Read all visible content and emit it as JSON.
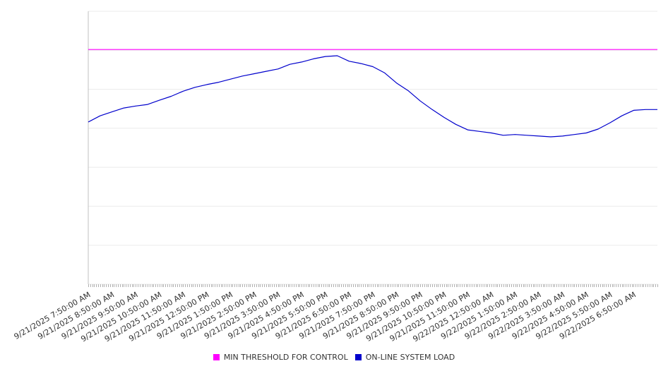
{
  "chart_data": {
    "type": "line",
    "title": "",
    "xlabel": "",
    "ylabel": "",
    "grid": true,
    "legend_position": "bottom",
    "x_tick_labels": [
      "9/21/2025 7:50:00 AM",
      "9/21/2025 8:50:00 AM",
      "9/21/2025 9:50:00 AM",
      "9/21/2025 10:50:00 AM",
      "9/21/2025 11:50:00 AM",
      "9/21/2025 12:50:00 PM",
      "9/21/2025 1:50:00 PM",
      "9/21/2025 2:50:00 PM",
      "9/21/2025 3:50:00 PM",
      "9/21/2025 4:50:00 PM",
      "9/21/2025 5:50:00 PM",
      "9/21/2025 6:50:00 PM",
      "9/21/2025 7:50:00 PM",
      "9/21/2025 8:50:00 PM",
      "9/21/2025 9:50:00 PM",
      "9/21/2025 10:50:00 PM",
      "9/21/2025 11:50:00 PM",
      "9/22/2025 12:50:00 AM",
      "9/22/2025 1:50:00 AM",
      "9/22/2025 2:50:00 AM",
      "9/22/2025 3:50:00 AM",
      "9/22/2025 4:50:00 AM",
      "9/22/2025 5:50:00 AM",
      "9/22/2025 6:50:00 AM"
    ],
    "ylim": [
      0,
      7
    ],
    "series": [
      {
        "name": "MIN THRESHOLD FOR CONTROL",
        "color": "#ff00ff",
        "x": [
          "9/21/2025 7:50:00 AM",
          "9/22/2025 7:50:00 AM"
        ],
        "values": [
          6.02,
          6.02
        ]
      },
      {
        "name": "ON-LINE SYSTEM LOAD",
        "color": "#0000cc",
        "x": [
          "9/21/2025 7:50:00 AM",
          "9/21/2025 8:20:00 AM",
          "9/21/2025 8:50:00 AM",
          "9/21/2025 9:20:00 AM",
          "9/21/2025 9:50:00 AM",
          "9/21/2025 10:20:00 AM",
          "9/21/2025 10:50:00 AM",
          "9/21/2025 11:20:00 AM",
          "9/21/2025 11:50:00 AM",
          "9/21/2025 12:20:00 PM",
          "9/21/2025 12:50:00 PM",
          "9/21/2025 1:20:00 PM",
          "9/21/2025 1:50:00 PM",
          "9/21/2025 2:20:00 PM",
          "9/21/2025 2:50:00 PM",
          "9/21/2025 3:20:00 PM",
          "9/21/2025 3:50:00 PM",
          "9/21/2025 4:20:00 PM",
          "9/21/2025 4:50:00 PM",
          "9/21/2025 5:20:00 PM",
          "9/21/2025 5:50:00 PM",
          "9/21/2025 6:20:00 PM",
          "9/21/2025 6:50:00 PM",
          "9/21/2025 7:20:00 PM",
          "9/21/2025 7:50:00 PM",
          "9/21/2025 8:20:00 PM",
          "9/21/2025 8:50:00 PM",
          "9/21/2025 9:20:00 PM",
          "9/21/2025 9:50:00 PM",
          "9/21/2025 10:20:00 PM",
          "9/21/2025 10:50:00 PM",
          "9/21/2025 11:20:00 PM",
          "9/21/2025 11:50:00 PM",
          "9/22/2025 12:20:00 AM",
          "9/22/2025 12:50:00 AM",
          "9/22/2025 1:20:00 AM",
          "9/22/2025 1:50:00 AM",
          "9/22/2025 2:20:00 AM",
          "9/22/2025 2:50:00 AM",
          "9/22/2025 3:20:00 AM",
          "9/22/2025 3:50:00 AM",
          "9/22/2025 4:20:00 AM",
          "9/22/2025 4:50:00 AM",
          "9/22/2025 5:20:00 AM",
          "9/22/2025 5:50:00 AM",
          "9/22/2025 6:20:00 AM",
          "9/22/2025 6:50:00 AM",
          "9/22/2025 7:20:00 AM",
          "9/22/2025 7:50:00 AM"
        ],
        "values": [
          4.16,
          4.32,
          4.42,
          4.52,
          4.57,
          4.61,
          4.72,
          4.82,
          4.95,
          5.05,
          5.12,
          5.18,
          5.26,
          5.34,
          5.4,
          5.46,
          5.52,
          5.64,
          5.7,
          5.78,
          5.84,
          5.86,
          5.72,
          5.66,
          5.58,
          5.42,
          5.16,
          4.96,
          4.7,
          4.48,
          4.28,
          4.1,
          3.96,
          3.92,
          3.88,
          3.82,
          3.84,
          3.82,
          3.8,
          3.78,
          3.8,
          3.84,
          3.88,
          3.98,
          4.14,
          4.32,
          4.46,
          4.48,
          4.48
        ]
      }
    ]
  }
}
